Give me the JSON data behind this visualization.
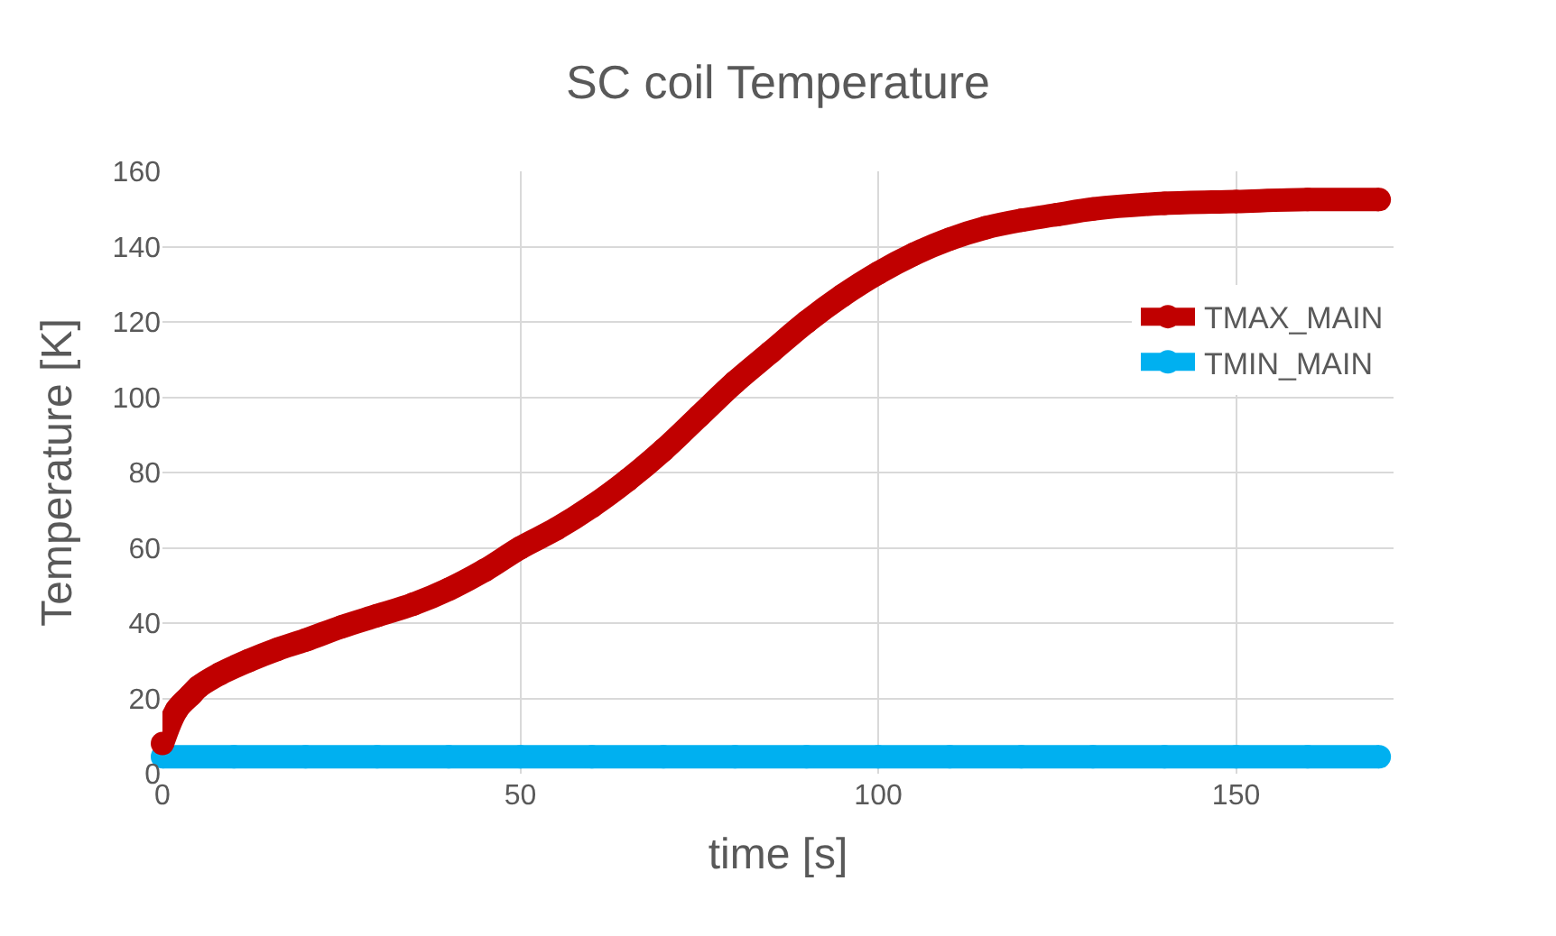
{
  "chart_data": {
    "type": "line",
    "title": "SC coil Temperature",
    "xlabel": "time [s]",
    "ylabel": "Temperature [K]",
    "xlim": [
      0,
      172
    ],
    "xticks": [
      0,
      50,
      100,
      150
    ],
    "ylim": [
      0,
      160
    ],
    "yticks": [
      0,
      20,
      40,
      60,
      80,
      100,
      120,
      140,
      160
    ],
    "grid": true,
    "legend": "right",
    "marker": "circle",
    "series": [
      {
        "name": "TMAX_MAIN",
        "color": "#c00000",
        "x": [
          0,
          2,
          4,
          5,
          8,
          12,
          16,
          20,
          25,
          30,
          35,
          40,
          45,
          50,
          55,
          60,
          65,
          70,
          75,
          80,
          85,
          90,
          95,
          100,
          105,
          110,
          115,
          120,
          125,
          130,
          140,
          150,
          160,
          170
        ],
        "values": [
          8,
          17,
          21,
          23,
          26.5,
          30,
          33,
          35.5,
          39,
          42,
          45,
          49,
          54,
          60,
          65,
          71,
          78,
          86,
          95,
          104,
          112,
          120,
          127,
          133,
          138,
          142,
          145,
          147,
          148.5,
          150,
          151.5,
          152,
          152.5,
          152.5
        ]
      },
      {
        "name": "TMIN_MAIN",
        "color": "#00b0f0",
        "x": [
          0,
          10,
          20,
          30,
          40,
          50,
          60,
          70,
          80,
          90,
          100,
          110,
          120,
          130,
          140,
          150,
          160,
          170
        ],
        "values": [
          4.5,
          4.5,
          4.5,
          4.5,
          4.5,
          4.5,
          4.5,
          4.5,
          4.5,
          4.5,
          4.5,
          4.5,
          4.5,
          4.5,
          4.5,
          4.5,
          4.5,
          4.5
        ]
      }
    ]
  }
}
